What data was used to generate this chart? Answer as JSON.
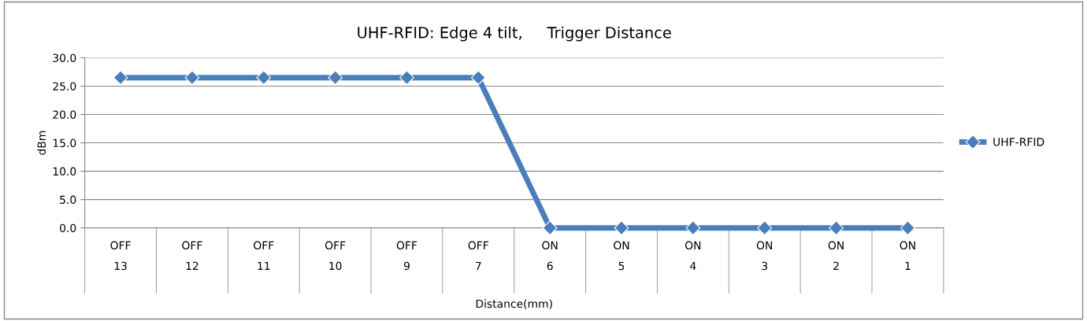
{
  "chart_data": {
    "type": "line",
    "title": "UHF-RFID: Edge 4 tilt,     Trigger Distance",
    "xlabel": "Distance(mm)",
    "ylabel": "dBm",
    "categories": [
      "OFF\n13",
      "OFF\n12",
      "OFF\n11",
      "OFF\n10",
      "OFF\n9",
      "OFF\n7",
      "ON\n6",
      "ON\n5",
      "ON\n4",
      "ON\n3",
      "ON\n2",
      "ON\n1"
    ],
    "series": [
      {
        "name": "UHF-RFID",
        "color": "#4a7ebb",
        "values": [
          26.5,
          26.5,
          26.5,
          26.5,
          26.5,
          26.5,
          0,
          0,
          0,
          0,
          0,
          0
        ]
      }
    ],
    "ylim": [
      0,
      30
    ],
    "yticks": [
      {
        "value": 0,
        "label": "0.0"
      },
      {
        "value": 5,
        "label": "5.0"
      },
      {
        "value": 10,
        "label": "10.0"
      },
      {
        "value": 15,
        "label": "15.0"
      },
      {
        "value": 20,
        "label": "20.0"
      },
      {
        "value": 25,
        "label": "25.0"
      },
      {
        "value": 30,
        "label": "30.0"
      }
    ],
    "grid": "y",
    "legend": "right",
    "marker": "diamond",
    "line_style": "solid"
  }
}
